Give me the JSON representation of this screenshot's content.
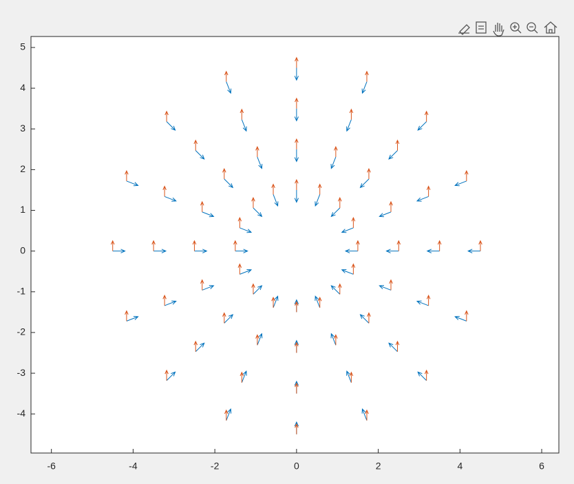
{
  "chart_data": {
    "type": "quiver",
    "x": [
      1.5,
      2.5,
      3.5,
      4.5,
      1.39,
      2.31,
      3.23,
      4.16,
      1.06,
      1.77,
      2.47,
      3.18,
      0.57,
      0.96,
      1.34,
      1.72,
      0,
      0,
      0,
      0,
      -0.57,
      -0.96,
      -1.34,
      -1.72,
      -1.06,
      -1.77,
      -2.47,
      -3.18,
      -1.39,
      -2.31,
      -3.23,
      -4.16,
      -1.5,
      -2.5,
      -3.5,
      -4.5,
      -1.39,
      -2.31,
      -3.23,
      -4.16,
      -1.06,
      -1.77,
      -2.47,
      -3.18,
      -0.57,
      -0.96,
      -1.34,
      -1.72,
      0,
      0,
      0,
      0,
      0.57,
      0.96,
      1.34,
      1.72,
      1.06,
      1.77,
      2.47,
      3.18,
      1.39,
      2.31,
      3.23,
      4.16
    ],
    "y": [
      0,
      0,
      0,
      0,
      0.57,
      0.96,
      1.34,
      1.72,
      1.06,
      1.77,
      2.47,
      3.18,
      1.39,
      2.31,
      3.23,
      4.16,
      1.5,
      2.5,
      3.5,
      4.5,
      1.39,
      2.31,
      3.23,
      4.16,
      1.06,
      1.77,
      2.47,
      3.18,
      0.57,
      0.96,
      1.34,
      1.72,
      0,
      0,
      0,
      0,
      -0.57,
      -0.96,
      -1.34,
      -1.72,
      -1.06,
      -1.77,
      -2.47,
      -3.18,
      -1.39,
      -2.31,
      -3.23,
      -4.16,
      -1.5,
      -2.5,
      -3.5,
      -4.5,
      -1.39,
      -2.31,
      -3.23,
      -4.16,
      -1.06,
      -1.77,
      -2.47,
      -3.18,
      -0.57,
      -0.96,
      -1.34,
      -1.72
    ],
    "series": [
      {
        "color": "#0072bd",
        "u": [
          -0.3,
          -0.3,
          -0.3,
          -0.3,
          -0.28,
          -0.28,
          -0.28,
          -0.28,
          -0.21,
          -0.21,
          -0.21,
          -0.21,
          -0.11,
          -0.11,
          -0.11,
          -0.11,
          0,
          0,
          0,
          0,
          0.11,
          0.11,
          0.11,
          0.11,
          0.21,
          0.21,
          0.21,
          0.21,
          0.28,
          0.28,
          0.28,
          0.28,
          0.3,
          0.3,
          0.3,
          0.3,
          0.28,
          0.28,
          0.28,
          0.28,
          0.21,
          0.21,
          0.21,
          0.21,
          0.11,
          0.11,
          0.11,
          0.11,
          0,
          0,
          0,
          0,
          -0.11,
          -0.11,
          -0.11,
          -0.11,
          -0.21,
          -0.21,
          -0.21,
          -0.21,
          -0.28,
          -0.28,
          -0.28,
          -0.28
        ],
        "v": [
          0,
          0,
          0,
          0,
          -0.11,
          -0.11,
          -0.11,
          -0.11,
          -0.21,
          -0.21,
          -0.21,
          -0.21,
          -0.28,
          -0.28,
          -0.28,
          -0.28,
          -0.3,
          -0.3,
          -0.3,
          -0.3,
          -0.28,
          -0.28,
          -0.28,
          -0.28,
          -0.21,
          -0.21,
          -0.21,
          -0.21,
          -0.11,
          -0.11,
          -0.11,
          -0.11,
          0,
          0,
          0,
          0,
          0.11,
          0.11,
          0.11,
          0.11,
          0.21,
          0.21,
          0.21,
          0.21,
          0.28,
          0.28,
          0.28,
          0.28,
          0.3,
          0.3,
          0.3,
          0.3,
          0.28,
          0.28,
          0.28,
          0.28,
          0.21,
          0.21,
          0.21,
          0.21,
          0.11,
          0.11,
          0.11,
          0.11
        ]
      },
      {
        "color": "#d95319",
        "u": [
          0,
          0,
          0,
          0,
          0,
          0,
          0,
          0,
          0,
          0,
          0,
          0,
          0,
          0,
          0,
          0,
          0,
          0,
          0,
          0,
          0,
          0,
          0,
          0,
          0,
          0,
          0,
          0,
          0,
          0,
          0,
          0,
          0,
          0,
          0,
          0,
          0,
          0,
          0,
          0,
          0,
          0,
          0,
          0,
          0,
          0,
          0,
          0,
          0,
          0,
          0,
          0,
          0,
          0,
          0,
          0,
          0,
          0,
          0,
          0,
          0,
          0,
          0,
          0
        ],
        "v": [
          0.25,
          0.25,
          0.25,
          0.25,
          0.25,
          0.25,
          0.25,
          0.25,
          0.25,
          0.25,
          0.25,
          0.25,
          0.25,
          0.25,
          0.25,
          0.25,
          0.25,
          0.25,
          0.25,
          0.25,
          0.25,
          0.25,
          0.25,
          0.25,
          0.25,
          0.25,
          0.25,
          0.25,
          0.25,
          0.25,
          0.25,
          0.25,
          0.25,
          0.25,
          0.25,
          0.25,
          0.25,
          0.25,
          0.25,
          0.25,
          0.25,
          0.25,
          0.25,
          0.25,
          0.25,
          0.25,
          0.25,
          0.25,
          0.25,
          0.25,
          0.25,
          0.25,
          0.25,
          0.25,
          0.25,
          0.25,
          0.25,
          0.25,
          0.25,
          0.25,
          0.25,
          0.25,
          0.25,
          0.25
        ]
      }
    ],
    "xlim": [
      -6.5,
      6.42
    ],
    "ylim": [
      -4.96,
      5.27
    ],
    "xticks": [
      -6,
      -4,
      -2,
      0,
      2,
      4,
      6
    ],
    "yticks": [
      -4,
      -3,
      -2,
      -1,
      0,
      1,
      2,
      3,
      4,
      5
    ]
  }
}
